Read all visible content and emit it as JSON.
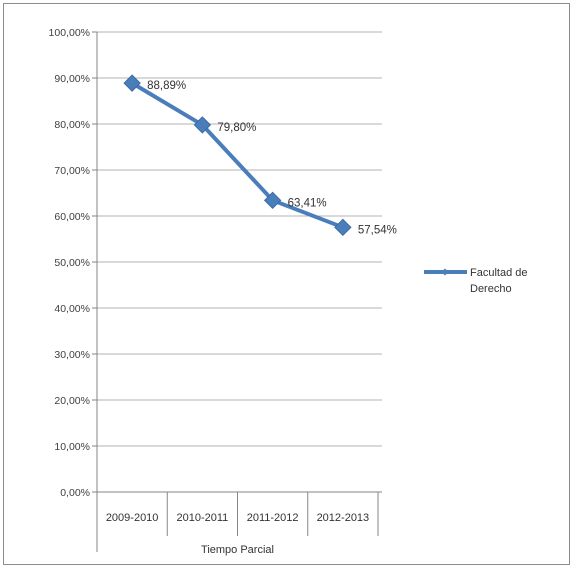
{
  "chart_data": {
    "type": "line",
    "title": "",
    "xlabel": "Tiempo Parcial",
    "ylabel": "",
    "categories": [
      "2009-2010",
      "2010-2011",
      "2011-2012",
      "2012-2013"
    ],
    "series": [
      {
        "name": "Facultad de Derecho",
        "values": [
          88.89,
          79.8,
          63.41,
          57.54
        ],
        "labels": [
          "88,89%",
          "79,80%",
          "63,41%",
          "57,54%"
        ],
        "color": "#4a7ebb",
        "marker": "diamond"
      }
    ],
    "ylim": [
      0,
      100
    ],
    "yticks": [
      0,
      10,
      20,
      30,
      40,
      50,
      60,
      70,
      80,
      90,
      100
    ],
    "ytick_labels": [
      "0,00%",
      "10,00%",
      "20,00%",
      "30,00%",
      "40,00%",
      "50,00%",
      "60,00%",
      "70,00%",
      "80,00%",
      "90,00%",
      "100,00%"
    ],
    "grid": true,
    "legend": "right",
    "legend_lines": [
      "Facultad de",
      "Derecho"
    ]
  }
}
